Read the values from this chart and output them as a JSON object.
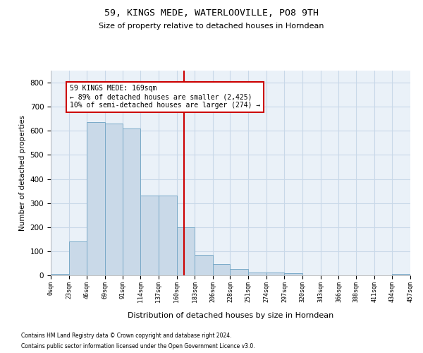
{
  "title": "59, KINGS MEDE, WATERLOOVILLE, PO8 9TH",
  "subtitle": "Size of property relative to detached houses in Horndean",
  "xlabel": "Distribution of detached houses by size in Horndean",
  "ylabel": "Number of detached properties",
  "bin_edges": [
    0,
    23,
    46,
    69,
    91,
    114,
    137,
    160,
    183,
    206,
    228,
    251,
    274,
    297,
    320,
    343,
    366,
    388,
    411,
    434,
    457
  ],
  "bar_heights": [
    5,
    142,
    635,
    630,
    610,
    330,
    330,
    200,
    84,
    48,
    27,
    12,
    13,
    10,
    0,
    0,
    0,
    0,
    0,
    5
  ],
  "bar_color": "#c9d9e8",
  "bar_edge_color": "#7aaac8",
  "vline_x": 169,
  "vline_color": "#cc0000",
  "annotation_text": "59 KINGS MEDE: 169sqm\n← 89% of detached houses are smaller (2,425)\n10% of semi-detached houses are larger (274) →",
  "annotation_box_color": "#cc0000",
  "ylim": [
    0,
    850
  ],
  "yticks": [
    0,
    100,
    200,
    300,
    400,
    500,
    600,
    700,
    800
  ],
  "grid_color": "#c8d8e8",
  "bg_color": "#eaf1f8",
  "footnote1": "Contains HM Land Registry data © Crown copyright and database right 2024.",
  "footnote2": "Contains public sector information licensed under the Open Government Licence v3.0."
}
